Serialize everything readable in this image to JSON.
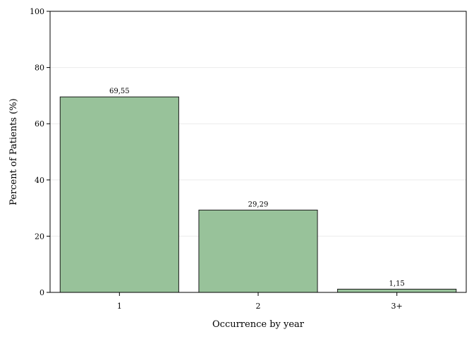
{
  "chart_data": {
    "type": "bar",
    "title": "",
    "xlabel": "Occurrence by year",
    "ylabel": "Percent of Patients (%)",
    "categories": [
      "1",
      "2",
      "3+"
    ],
    "values": [
      69.55,
      29.29,
      1.15
    ],
    "value_labels": [
      "69,55",
      "29,29",
      "1,15"
    ],
    "ylim": [
      0,
      100
    ],
    "yticks": [
      0,
      20,
      40,
      60,
      80,
      100
    ],
    "ytick_labels": [
      "0",
      "20",
      "40",
      "60",
      "80",
      "100"
    ],
    "grid": true,
    "legend": "none",
    "colors": {
      "bar_fill": "#98c29a",
      "bar_stroke": "#1a1a1a",
      "grid": "#ececec",
      "axis": "#000000"
    }
  }
}
